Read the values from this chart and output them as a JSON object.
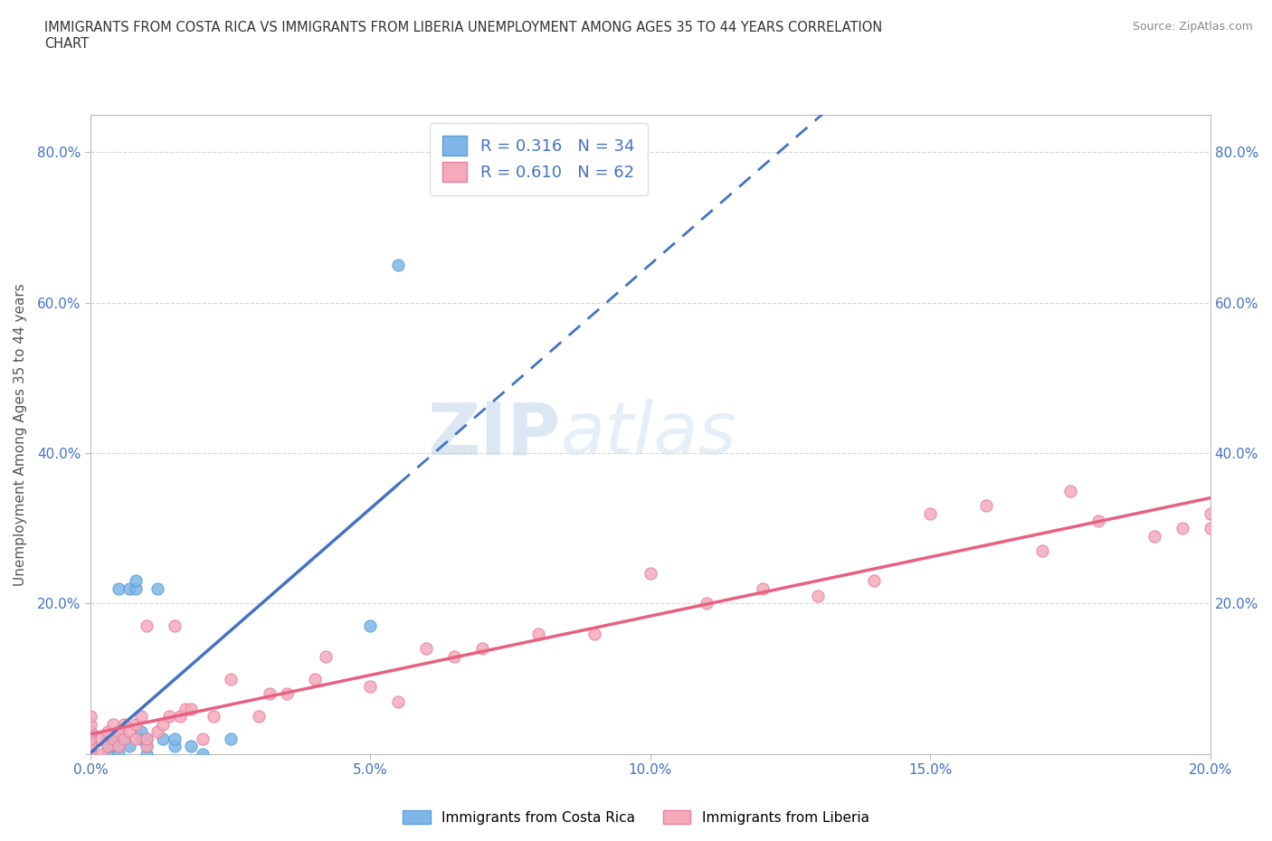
{
  "title": "IMMIGRANTS FROM COSTA RICA VS IMMIGRANTS FROM LIBERIA UNEMPLOYMENT AMONG AGES 35 TO 44 YEARS CORRELATION\nCHART",
  "source": "Source: ZipAtlas.com",
  "xlabel": "",
  "ylabel": "Unemployment Among Ages 35 to 44 years",
  "xlim": [
    0.0,
    0.2
  ],
  "ylim": [
    0.0,
    0.85
  ],
  "xticks": [
    0.0,
    0.05,
    0.1,
    0.15,
    0.2
  ],
  "xticklabels": [
    "0.0%",
    "5.0%",
    "10.0%",
    "15.0%",
    "20.0%"
  ],
  "yticks": [
    0.0,
    0.2,
    0.4,
    0.6,
    0.8
  ],
  "yticklabels": [
    "",
    "20.0%",
    "40.0%",
    "60.0%",
    "80.0%"
  ],
  "costa_rica_color": "#7EB6E8",
  "costa_rica_edge": "#5A9FD4",
  "liberia_color": "#F4AABB",
  "liberia_edge": "#E8809A",
  "costa_rica_R": 0.316,
  "costa_rica_N": 34,
  "liberia_R": 0.61,
  "liberia_N": 62,
  "line_blue": "#4472C4",
  "line_pink": "#E86080",
  "watermark": "ZIPatlas",
  "background": "#FFFFFF",
  "costa_rica_x": [
    0.0,
    0.0,
    0.0,
    0.0,
    0.0,
    0.0,
    0.0,
    0.003,
    0.003,
    0.003,
    0.004,
    0.005,
    0.005,
    0.005,
    0.005,
    0.006,
    0.007,
    0.007,
    0.008,
    0.008,
    0.009,
    0.009,
    0.01,
    0.01,
    0.01,
    0.012,
    0.013,
    0.015,
    0.015,
    0.018,
    0.02,
    0.025,
    0.05,
    0.055
  ],
  "costa_rica_y": [
    0.0,
    0.0,
    0.0,
    0.01,
    0.01,
    0.02,
    0.03,
    0.0,
    0.01,
    0.02,
    0.01,
    0.0,
    0.01,
    0.02,
    0.22,
    0.02,
    0.01,
    0.22,
    0.22,
    0.23,
    0.02,
    0.03,
    0.0,
    0.01,
    0.02,
    0.22,
    0.02,
    0.01,
    0.02,
    0.01,
    0.0,
    0.02,
    0.17,
    0.65
  ],
  "liberia_x": [
    0.0,
    0.0,
    0.0,
    0.0,
    0.0,
    0.0,
    0.0,
    0.0,
    0.0,
    0.002,
    0.002,
    0.003,
    0.003,
    0.004,
    0.004,
    0.005,
    0.005,
    0.006,
    0.006,
    0.007,
    0.008,
    0.008,
    0.009,
    0.01,
    0.01,
    0.01,
    0.012,
    0.013,
    0.014,
    0.015,
    0.016,
    0.017,
    0.018,
    0.02,
    0.022,
    0.025,
    0.03,
    0.032,
    0.035,
    0.04,
    0.042,
    0.05,
    0.055,
    0.06,
    0.065,
    0.07,
    0.08,
    0.09,
    0.1,
    0.11,
    0.12,
    0.13,
    0.14,
    0.15,
    0.16,
    0.17,
    0.175,
    0.18,
    0.19,
    0.195,
    0.2,
    0.2
  ],
  "liberia_y": [
    0.0,
    0.0,
    0.0,
    0.01,
    0.01,
    0.02,
    0.03,
    0.04,
    0.05,
    0.0,
    0.02,
    0.01,
    0.03,
    0.02,
    0.04,
    0.01,
    0.03,
    0.02,
    0.04,
    0.03,
    0.02,
    0.04,
    0.05,
    0.01,
    0.02,
    0.17,
    0.03,
    0.04,
    0.05,
    0.17,
    0.05,
    0.06,
    0.06,
    0.02,
    0.05,
    0.1,
    0.05,
    0.08,
    0.08,
    0.1,
    0.13,
    0.09,
    0.07,
    0.14,
    0.13,
    0.14,
    0.16,
    0.16,
    0.24,
    0.2,
    0.22,
    0.21,
    0.23,
    0.32,
    0.33,
    0.27,
    0.35,
    0.31,
    0.29,
    0.3,
    0.32,
    0.3
  ]
}
